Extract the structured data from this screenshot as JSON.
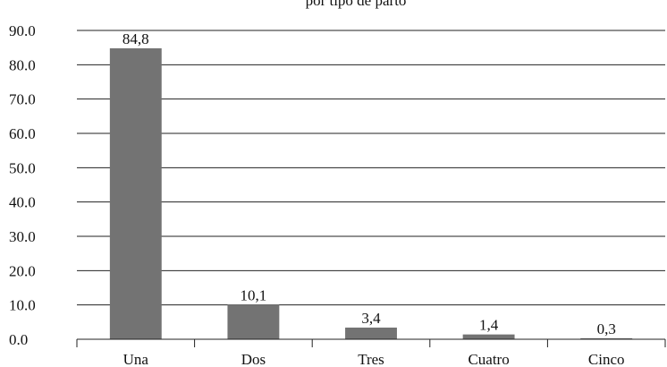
{
  "chart_data": {
    "type": "bar",
    "title": "por tipo de parto",
    "xlabel": "",
    "ylabel": "",
    "categories": [
      "Una",
      "Dos",
      "Tres",
      "Cuatro",
      "Cinco"
    ],
    "values": [
      84.8,
      10.1,
      3.4,
      1.4,
      0.3
    ],
    "value_labels": [
      "84,8",
      "10,1",
      "3,4",
      "1,4",
      "0,3"
    ],
    "yticks": [
      0,
      10,
      20,
      30,
      40,
      50,
      60,
      70,
      80,
      90
    ],
    "ytick_labels": [
      "0.0",
      "10.0",
      "20.0",
      "30.0",
      "40.0",
      "50.0",
      "60.0",
      "70.0",
      "80.0",
      "90.0"
    ],
    "ylim": [
      0,
      90
    ],
    "grid": true,
    "legend": "none",
    "colors": {
      "bar": "#737373",
      "grid": "#222222",
      "text": "#111111"
    }
  }
}
